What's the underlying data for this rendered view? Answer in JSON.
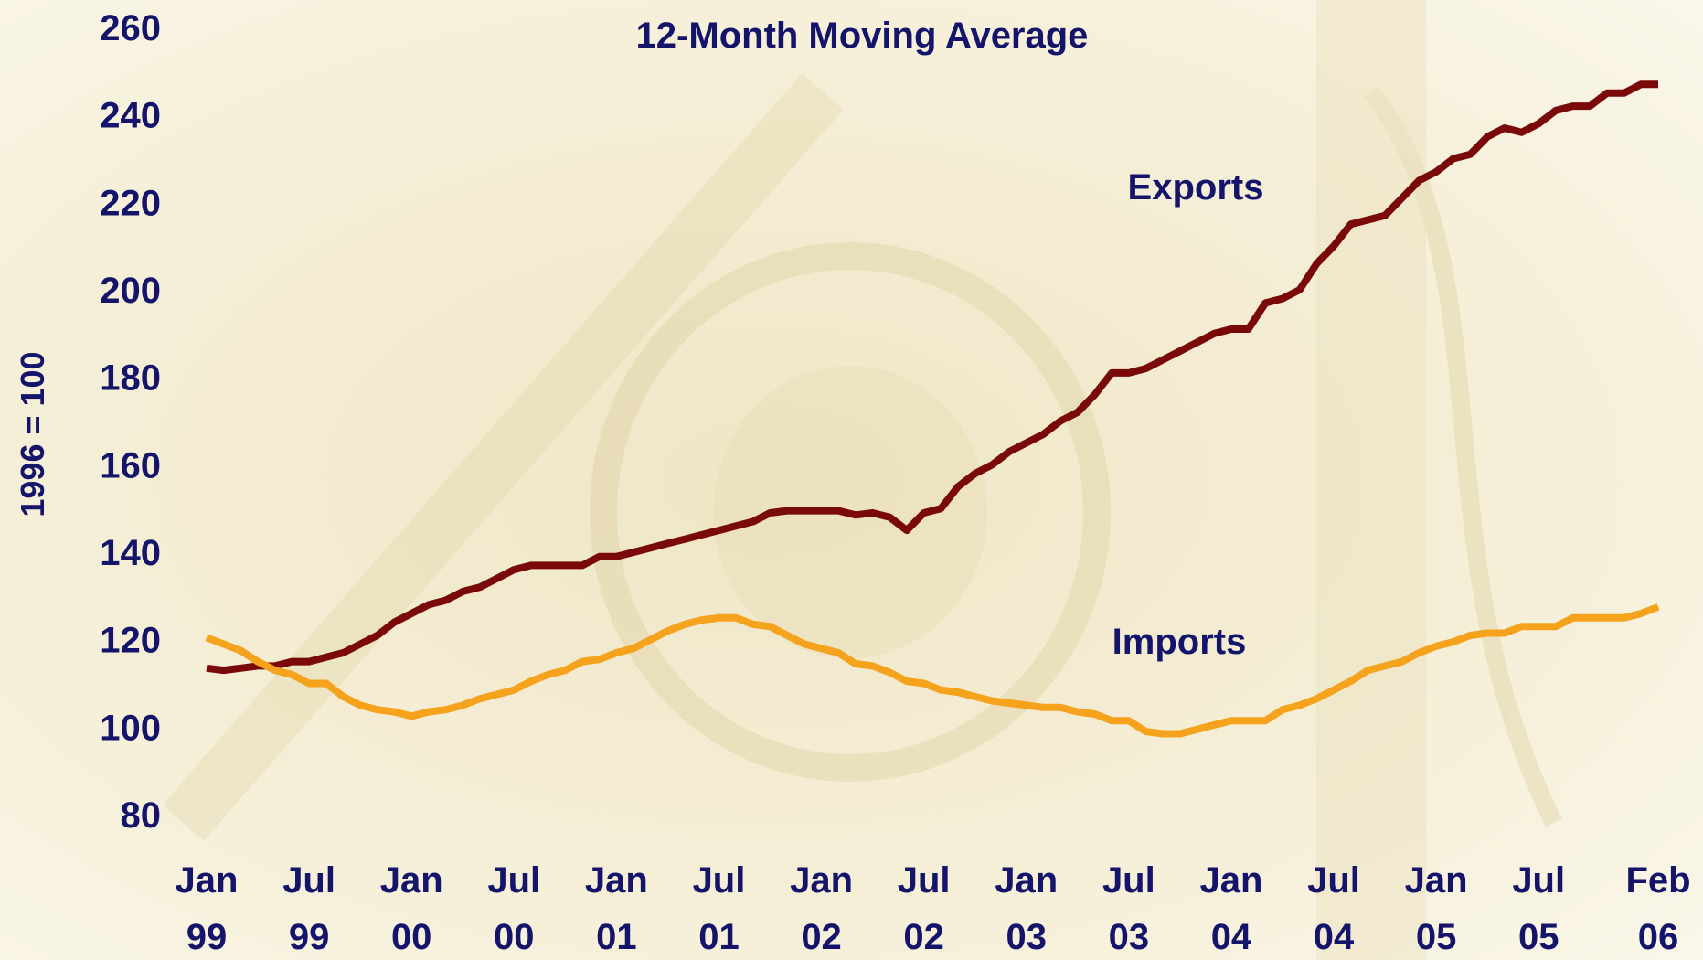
{
  "chart_data": {
    "type": "line",
    "title": "12-Month Moving Average",
    "y_label": "1996 = 100",
    "categories": [
      "Jan 99",
      null,
      null,
      null,
      null,
      null,
      "Jul 99",
      null,
      null,
      null,
      null,
      null,
      "Jan 00",
      null,
      null,
      null,
      null,
      null,
      "Jul 00",
      null,
      null,
      null,
      null,
      null,
      "Jan 01",
      null,
      null,
      null,
      null,
      null,
      "Jul 01",
      null,
      null,
      null,
      null,
      null,
      "Jan 02",
      null,
      null,
      null,
      null,
      null,
      "Jul 02",
      null,
      null,
      null,
      null,
      null,
      "Jan 03",
      null,
      null,
      null,
      null,
      null,
      "Jul 03",
      null,
      null,
      null,
      null,
      null,
      "Jan 04",
      null,
      null,
      null,
      null,
      null,
      "Jul 04",
      null,
      null,
      null,
      null,
      null,
      "Jan 05",
      null,
      null,
      null,
      null,
      null,
      "Jul 05",
      null,
      null,
      null,
      null,
      null,
      null,
      "Feb 06"
    ],
    "series": [
      {
        "name": "Exports",
        "color": "#7a0a0a",
        "values": [
          113.5,
          113,
          113.5,
          114,
          114,
          115,
          115,
          116,
          117,
          119,
          121,
          124,
          126,
          128,
          129,
          131,
          132,
          134,
          136,
          137,
          137,
          137,
          137,
          139,
          139,
          140,
          141,
          142,
          143,
          144,
          145,
          146,
          147,
          149,
          149.5,
          149.5,
          149.5,
          149.5,
          148.5,
          149,
          148,
          145,
          149,
          150,
          155,
          158,
          160,
          163,
          165,
          167,
          170,
          172,
          176,
          181,
          181,
          182,
          184,
          186,
          188,
          190,
          191,
          191,
          197,
          198,
          200,
          206,
          210,
          215,
          216,
          217,
          221,
          225,
          227,
          230,
          231,
          235,
          237,
          236,
          238,
          241,
          242,
          242,
          245,
          245,
          247,
          247
        ]
      },
      {
        "name": "Imports",
        "color": "#f5a21c",
        "values": [
          120.5,
          119,
          117.5,
          115,
          113,
          112,
          110,
          110,
          107,
          105,
          104,
          103.5,
          102.5,
          103.5,
          104,
          105,
          106.5,
          107.5,
          108.5,
          110.5,
          112,
          113,
          115,
          115.5,
          117,
          118,
          120,
          122,
          123.5,
          124.5,
          125,
          125,
          123.5,
          123,
          121,
          119,
          118,
          117,
          114.5,
          114,
          112.5,
          110.5,
          110,
          108.5,
          108,
          107,
          106,
          105.5,
          105,
          104.5,
          104.5,
          103.5,
          103,
          101.5,
          101.5,
          99,
          98.5,
          98.5,
          99.5,
          100.5,
          101.5,
          101.5,
          101.5,
          104,
          105,
          106.5,
          108.5,
          110.5,
          113,
          114,
          115,
          117,
          118.5,
          119.5,
          121,
          121.5,
          121.5,
          123,
          123,
          123,
          125,
          125,
          125,
          125,
          126,
          127.5
        ]
      }
    ],
    "ylim": [
      80,
      260
    ],
    "yticks": [
      80,
      100,
      120,
      140,
      160,
      180,
      200,
      220,
      240,
      260
    ],
    "grid": false
  }
}
